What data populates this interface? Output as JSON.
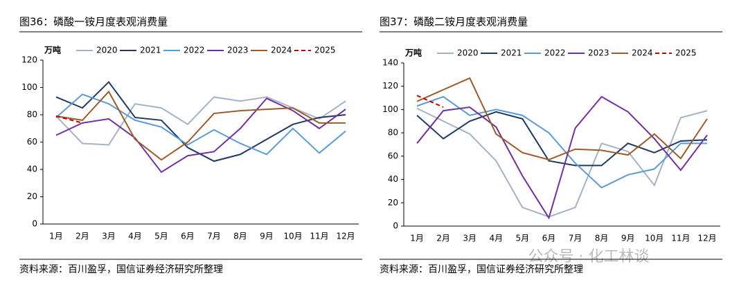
{
  "chart_data": [
    {
      "type": "line",
      "title": "图36：磷酸一铵月度表观消费量",
      "unit": "万吨",
      "source": "资料来源：百川盈孚，国信证券经济研究所整理",
      "categories": [
        "1月",
        "2月",
        "3月",
        "4月",
        "5月",
        "6月",
        "7月",
        "8月",
        "9月",
        "10月",
        "11月",
        "12月"
      ],
      "ylim": [
        0,
        120
      ],
      "yticks": [
        0,
        20,
        40,
        60,
        80,
        100,
        120
      ],
      "series": [
        {
          "name": "2020",
          "color": "#a6b2c2",
          "values": [
            79,
            59,
            58,
            88,
            85,
            73,
            93,
            90,
            93,
            85,
            77,
            90
          ]
        },
        {
          "name": "2021",
          "color": "#1f3864",
          "values": [
            93,
            85,
            104,
            78,
            76,
            56,
            46,
            51,
            62,
            73,
            78,
            80
          ]
        },
        {
          "name": "2022",
          "color": "#5b9bd5",
          "values": [
            78,
            95,
            88,
            76,
            71,
            58,
            69,
            59,
            51,
            70,
            52,
            68
          ]
        },
        {
          "name": "2023",
          "color": "#7030a0",
          "values": [
            65,
            74,
            77,
            63,
            38,
            50,
            53,
            70,
            92,
            83,
            70,
            84
          ]
        },
        {
          "name": "2024",
          "color": "#9c5a2a",
          "values": [
            79,
            76,
            97,
            62,
            47,
            60,
            81,
            83,
            84,
            85,
            74,
            74
          ]
        },
        {
          "name": "2025",
          "color": "#c00000",
          "dashed": true,
          "values": [
            79,
            74,
            null,
            null,
            null,
            null,
            null,
            null,
            null,
            null,
            null,
            null
          ]
        }
      ]
    },
    {
      "type": "line",
      "title": "图37：磷酸二铵月度表观消费量",
      "unit": "万吨",
      "source": "资料来源：百川盈孚，国信证券经济研究所整理",
      "categories": [
        "1月",
        "2月",
        "3月",
        "4月",
        "5月",
        "6月",
        "7月",
        "8月",
        "9月",
        "10月",
        "11月",
        "12月"
      ],
      "ylim": [
        0,
        140
      ],
      "yticks": [
        0,
        20,
        40,
        60,
        80,
        100,
        120,
        140
      ],
      "series": [
        {
          "name": "2020",
          "color": "#a6b2c2",
          "values": [
            101,
            90,
            79,
            56,
            16,
            8,
            16,
            71,
            64,
            35,
            93,
            99
          ]
        },
        {
          "name": "2021",
          "color": "#1f3864",
          "values": [
            95,
            75,
            90,
            98,
            92,
            56,
            52,
            52,
            71,
            63,
            73,
            74
          ]
        },
        {
          "name": "2022",
          "color": "#5b9bd5",
          "values": [
            103,
            111,
            95,
            100,
            95,
            80,
            54,
            33,
            44,
            49,
            71,
            71
          ]
        },
        {
          "name": "2023",
          "color": "#7030a0",
          "values": [
            71,
            99,
            102,
            85,
            43,
            7,
            84,
            111,
            98,
            75,
            48,
            78
          ]
        },
        {
          "name": "2024",
          "color": "#9c5a2a",
          "values": [
            107,
            117,
            127,
            79,
            63,
            57,
            66,
            65,
            61,
            79,
            58,
            92
          ]
        },
        {
          "name": "2025",
          "color": "#c00000",
          "dashed": true,
          "values": [
            112,
            102,
            null,
            null,
            null,
            null,
            null,
            null,
            null,
            null,
            null,
            null
          ]
        }
      ]
    }
  ],
  "watermark": "公众号 · 化工林谈"
}
